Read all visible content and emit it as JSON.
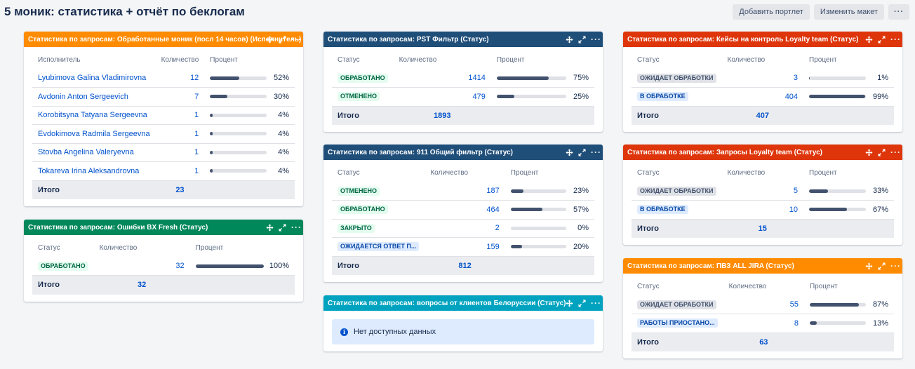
{
  "page": {
    "title": "5 моник: статистика + отчёт по беклогам",
    "add_portlet_label": "Добавить портлет",
    "edit_layout_label": "Изменить макет",
    "more_label": "···"
  },
  "colors": {
    "orange": "#ff8b00",
    "navy": "#1f4e79",
    "red": "#de350b",
    "green": "#00875a",
    "teal": "#00a3bf",
    "bar": "#42526e",
    "link": "#0052cc"
  },
  "gadget_icons": [
    "move-icon",
    "expand-icon",
    "more-icon"
  ],
  "gadgets": {
    "g1": {
      "title": "Статистика по запросам: Обработанные моник (посл 14 часов) (Исполнитель)",
      "col1": "Исполнитель",
      "col2": "Количество",
      "col3": "Процент",
      "rows": [
        {
          "label": "Lyubimova Galina Vladimirovna",
          "count": "12",
          "percent": "52%",
          "fill": 52
        },
        {
          "label": "Avdonin Anton Sergeevich",
          "count": "7",
          "percent": "30%",
          "fill": 30
        },
        {
          "label": "Korobitsyna Tatyana Sergeevna",
          "count": "1",
          "percent": "4%",
          "fill": 4
        },
        {
          "label": "Evdokimova Radmila Sergeevna",
          "count": "1",
          "percent": "4%",
          "fill": 4
        },
        {
          "label": "Stovba Angelina Valeryevna",
          "count": "1",
          "percent": "4%",
          "fill": 4
        },
        {
          "label": "Tokareva Irina Aleksandrovna",
          "count": "1",
          "percent": "4%",
          "fill": 4
        }
      ],
      "total_label": "Итого",
      "total_count": "23"
    },
    "g2": {
      "title": "Статистика по запросам: Ошибки BX Fresh (Статус)",
      "col1": "Статус",
      "col2": "Количество",
      "col3": "Процент",
      "rows": [
        {
          "label": "ОБРАБОТАНО",
          "count": "32",
          "percent": "100%",
          "fill": 100
        }
      ],
      "total_label": "Итого",
      "total_count": "32"
    },
    "g3": {
      "title": "Статистика по запросам: PST Фильтр (Статус)",
      "col1": "Статус",
      "col2": "Количество",
      "col3": "Процент",
      "rows": [
        {
          "label": "ОБРАБОТАНО",
          "count": "1414",
          "percent": "75%",
          "fill": 75
        },
        {
          "label": "ОТМЕНЕНО",
          "count": "479",
          "percent": "25%",
          "fill": 25
        }
      ],
      "total_label": "Итого",
      "total_count": "1893"
    },
    "g4": {
      "title": "Статистика по запросам: 911 Общий фильтр (Статус)",
      "col1": "Статус",
      "col2": "Количество",
      "col3": "Процент",
      "rows": [
        {
          "label": "ОТМЕНЕНО",
          "count": "187",
          "percent": "23%",
          "fill": 23
        },
        {
          "label": "ОБРАБОТАНО",
          "count": "464",
          "percent": "57%",
          "fill": 57
        },
        {
          "label": "ЗАКРЫТО",
          "count": "2",
          "percent": "0%",
          "fill": 0
        },
        {
          "label": "ОЖИДАЕТСЯ ОТВЕТ П...",
          "count": "159",
          "percent": "20%",
          "fill": 20
        }
      ],
      "total_label": "Итого",
      "total_count": "812"
    },
    "g5": {
      "title": "Статистика по запросам: вопросы от клиентов Белоруссии (Статус)",
      "no_data": "Нет доступных данных"
    },
    "g6": {
      "title": "Статистика по запросам: Кейсы на контроль Loyalty team (Статус)",
      "col1": "Статус",
      "col2": "Количество",
      "col3": "Процент",
      "rows": [
        {
          "label": "ОЖИДАЕТ ОБРАБОТКИ",
          "count": "3",
          "percent": "1%",
          "fill": 1
        },
        {
          "label": "В ОБРАБОТКЕ",
          "count": "404",
          "percent": "99%",
          "fill": 99
        }
      ],
      "total_label": "Итого",
      "total_count": "407"
    },
    "g7": {
      "title": "Статистика по запросам: Запросы Loyalty team (Статус)",
      "col1": "Статус",
      "col2": "Количество",
      "col3": "Процент",
      "rows": [
        {
          "label": "ОЖИДАЕТ ОБРАБОТКИ",
          "count": "5",
          "percent": "33%",
          "fill": 33
        },
        {
          "label": "В ОБРАБОТКЕ",
          "count": "10",
          "percent": "67%",
          "fill": 67
        }
      ],
      "total_label": "Итого",
      "total_count": "15"
    },
    "g8": {
      "title": "Статистика по запросам: ПВЗ ALL JIRA (Статус)",
      "col1": "Статус",
      "col2": "Количество",
      "col3": "Процент",
      "rows": [
        {
          "label": "ОЖИДАЕТ ОБРАБОТКИ",
          "count": "55",
          "percent": "87%",
          "fill": 87
        },
        {
          "label": "РАБОТЫ ПРИОСТАНО...",
          "count": "8",
          "percent": "13%",
          "fill": 13
        }
      ],
      "total_label": "Итого",
      "total_count": "63"
    }
  }
}
